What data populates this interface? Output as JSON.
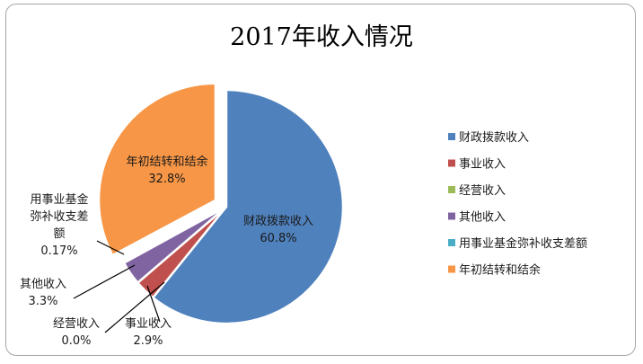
{
  "chart_data": {
    "type": "pie",
    "title": "2017年收入情况",
    "slices": [
      {
        "name": "财政拨款收入",
        "value": 60.8,
        "label_value": "60.8%",
        "color": "#4f81bd",
        "exploded": false
      },
      {
        "name": "事业收入",
        "value": 2.9,
        "label_value": "2.9%",
        "color": "#c0504d",
        "exploded": false
      },
      {
        "name": "经营收入",
        "value": 0.0,
        "label_value": "0.0%",
        "color": "#9bbb59",
        "exploded": false
      },
      {
        "name": "其他收入",
        "value": 3.3,
        "label_value": "3.3%",
        "color": "#8064a2",
        "exploded": false
      },
      {
        "name": "用事业基金弥补收支差额",
        "value": 0.17,
        "label_value": "0.17%",
        "color": "#4bacc6",
        "exploded": false
      },
      {
        "name": "年初结转和结余",
        "value": 32.8,
        "label_value": "32.8%",
        "color": "#f79646",
        "exploded": true
      }
    ],
    "legend_position": "right"
  }
}
